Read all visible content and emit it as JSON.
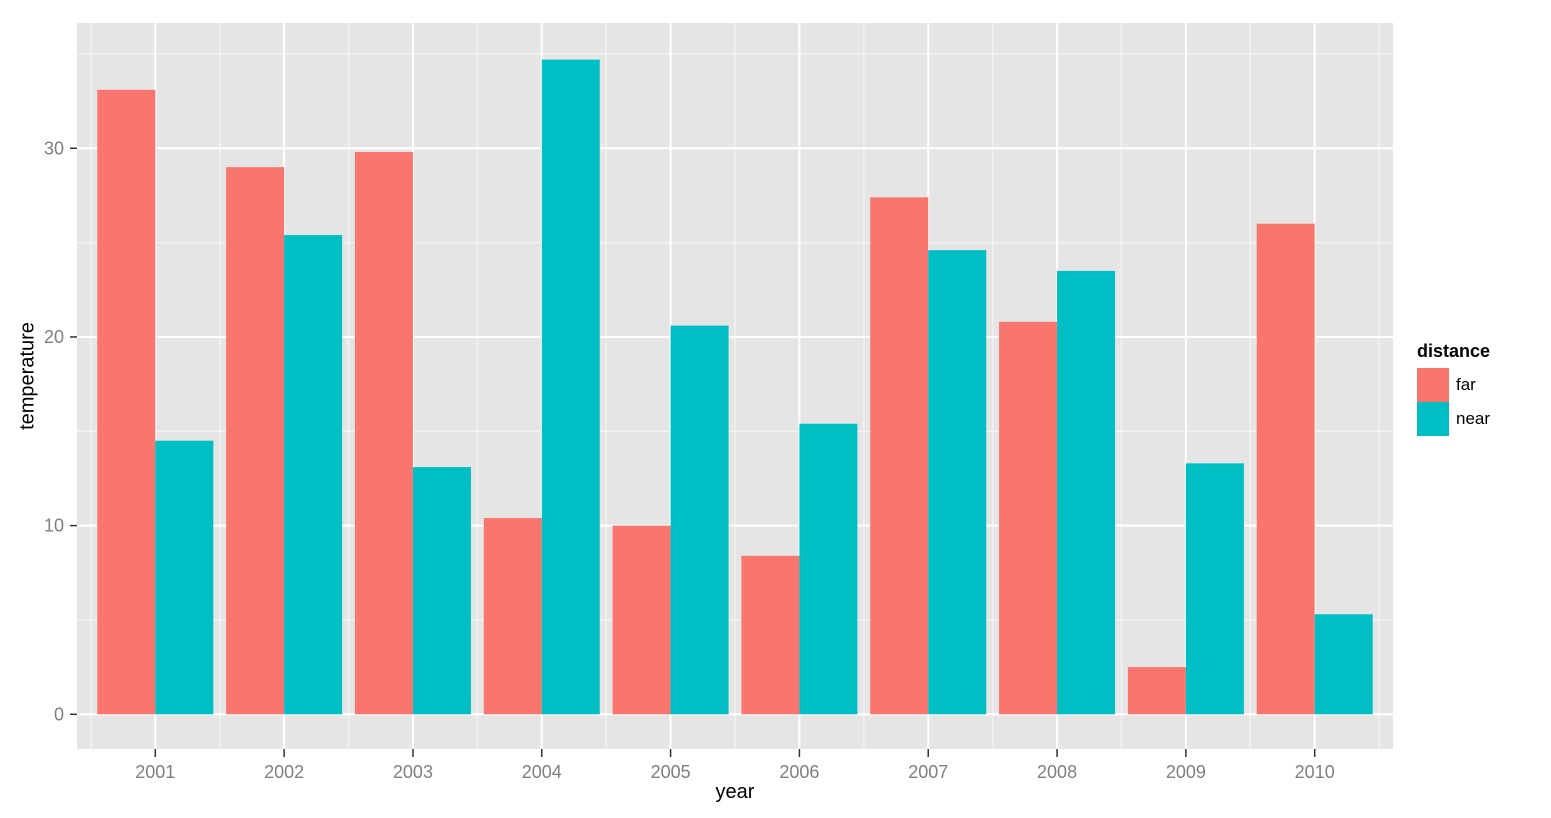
{
  "chart_data": {
    "type": "bar",
    "title": "",
    "xlabel": "year",
    "ylabel": "temperature",
    "categories": [
      "2001",
      "2002",
      "2003",
      "2004",
      "2005",
      "2006",
      "2007",
      "2008",
      "2009",
      "2010"
    ],
    "series": [
      {
        "name": "far",
        "color": "#F8766D",
        "values": [
          33.1,
          29.0,
          29.8,
          10.4,
          10.0,
          8.4,
          27.4,
          20.8,
          2.5,
          26.0
        ]
      },
      {
        "name": "near",
        "color": "#00BFC4",
        "values": [
          14.5,
          25.4,
          13.1,
          34.7,
          20.6,
          15.4,
          24.6,
          23.5,
          13.3,
          5.3
        ]
      }
    ],
    "y_ticks": [
      0,
      10,
      20,
      30
    ],
    "y_minor_ticks": [
      5,
      15,
      25,
      35
    ],
    "ylim": [
      -1.84,
      36.64
    ],
    "grid": true,
    "legend_position": "right"
  },
  "legend": {
    "title": "distance",
    "items": [
      {
        "label": "far",
        "color": "#F8766D"
      },
      {
        "label": "near",
        "color": "#00BFC4"
      }
    ]
  },
  "style": {
    "panel_bg": "#E5E5E5",
    "grid_major": "#FFFFFF",
    "grid_minor": "#F2F2F2",
    "tick_mark": "#333333",
    "axis_text": "#7F7F7F",
    "axis_title": "#000000"
  }
}
